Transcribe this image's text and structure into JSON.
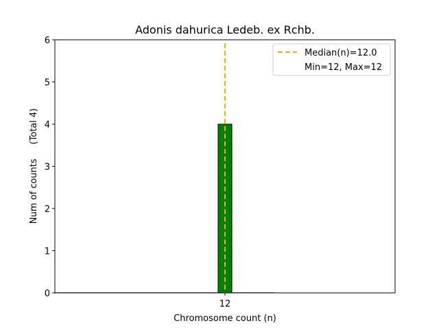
{
  "chart_data": {
    "type": "bar",
    "title": "Adonis dahurica Ledeb. ex Rchb.",
    "xlabel": "Chromosome count (n)",
    "ylabel": "Num of counts     (Total 4)",
    "categories": [
      "12"
    ],
    "x": [
      12
    ],
    "values": [
      4
    ],
    "bar_width": 0.8,
    "xlim": [
      2.08,
      21.92
    ],
    "ylim": [
      0,
      6
    ],
    "yticks": [
      0,
      1,
      2,
      3,
      4,
      5,
      6
    ],
    "xticks": [
      12
    ],
    "grid": false,
    "bar_color": "#008000",
    "median": 12.0,
    "median_color": "#FFA500",
    "legend": {
      "placement": "top-right",
      "entries": [
        "Median(n)=12.0",
        "Min=12, Max=12"
      ]
    }
  }
}
